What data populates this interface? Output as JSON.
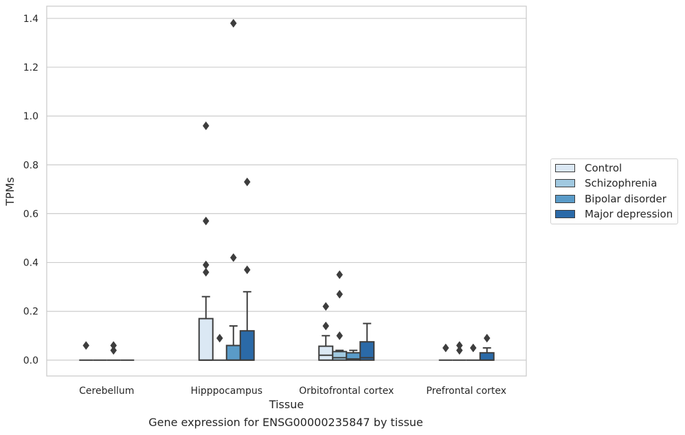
{
  "caption": "Gene expression for ENSG00000235847 by tissue",
  "chart_data": {
    "type": "box",
    "xlabel": "Tissue",
    "ylabel": "TPMs",
    "ylim": [
      -0.065,
      1.45
    ],
    "yticks": [
      0.0,
      0.2,
      0.4,
      0.6,
      0.8,
      1.0,
      1.2,
      1.4
    ],
    "ytick_labels": [
      "0.0",
      "0.2",
      "0.4",
      "0.6",
      "0.8",
      "1.0",
      "1.2",
      "1.4"
    ],
    "grid": "horizontal",
    "legend_position": "outside-right",
    "categories": [
      "Cerebellum",
      "Hipppocampus",
      "Orbitofrontal cortex",
      "Prefrontal cortex"
    ],
    "series": [
      {
        "name": "Control",
        "color": "#dbe8f4",
        "boxes": [
          {
            "q1": 0,
            "median": 0,
            "q3": 0,
            "whisker_low": 0,
            "whisker_high": 0,
            "outliers": [
              0.06
            ]
          },
          {
            "q1": 0,
            "median": 0,
            "q3": 0.17,
            "whisker_low": 0,
            "whisker_high": 0.26,
            "outliers": [
              0.96,
              0.57,
              0.39,
              0.36
            ]
          },
          {
            "q1": 0,
            "median": 0.02,
            "q3": 0.057,
            "whisker_low": 0,
            "whisker_high": 0.1,
            "outliers": [
              0.22,
              0.14
            ]
          },
          {
            "q1": 0,
            "median": 0,
            "q3": 0,
            "whisker_low": 0,
            "whisker_high": 0,
            "outliers": [
              0.05
            ]
          }
        ]
      },
      {
        "name": "Schizophrenia",
        "color": "#a1c9e0",
        "boxes": [
          {
            "q1": 0,
            "median": 0,
            "q3": 0,
            "whisker_low": 0,
            "whisker_high": 0,
            "outliers": []
          },
          {
            "q1": 0,
            "median": 0,
            "q3": 0,
            "whisker_low": 0,
            "whisker_high": 0,
            "outliers": [
              0.09
            ]
          },
          {
            "q1": 0,
            "median": 0.01,
            "q3": 0.035,
            "whisker_low": 0,
            "whisker_high": 0.04,
            "outliers": [
              0.35,
              0.27,
              0.1
            ]
          },
          {
            "q1": 0,
            "median": 0,
            "q3": 0,
            "whisker_low": 0,
            "whisker_high": 0,
            "outliers": [
              0.06,
              0.04
            ]
          }
        ]
      },
      {
        "name": "Bipolar disorder",
        "color": "#5a9bc8",
        "boxes": [
          {
            "q1": 0,
            "median": 0,
            "q3": 0,
            "whisker_low": 0,
            "whisker_high": 0,
            "outliers": [
              0.06,
              0.04
            ]
          },
          {
            "q1": 0,
            "median": 0,
            "q3": 0.06,
            "whisker_low": 0,
            "whisker_high": 0.14,
            "outliers": [
              1.38,
              0.42
            ]
          },
          {
            "q1": 0,
            "median": 0.005,
            "q3": 0.03,
            "whisker_low": 0,
            "whisker_high": 0.04,
            "outliers": []
          },
          {
            "q1": 0,
            "median": 0,
            "q3": 0,
            "whisker_low": 0,
            "whisker_high": 0,
            "outliers": [
              0.05
            ]
          }
        ]
      },
      {
        "name": "Major depression",
        "color": "#2b6aa8",
        "boxes": [
          {
            "q1": 0,
            "median": 0,
            "q3": 0,
            "whisker_low": 0,
            "whisker_high": 0,
            "outliers": []
          },
          {
            "q1": 0,
            "median": 0,
            "q3": 0.12,
            "whisker_low": 0,
            "whisker_high": 0.28,
            "outliers": [
              0.73,
              0.37
            ]
          },
          {
            "q1": 0,
            "median": 0.01,
            "q3": 0.075,
            "whisker_low": 0,
            "whisker_high": 0.15,
            "outliers": []
          },
          {
            "q1": 0,
            "median": 0,
            "q3": 0.03,
            "whisker_low": 0,
            "whisker_high": 0.05,
            "outliers": [
              0.09
            ]
          }
        ]
      }
    ]
  }
}
